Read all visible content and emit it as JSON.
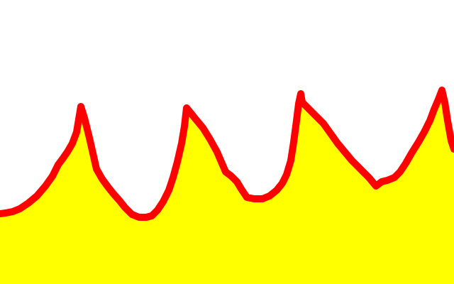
{
  "colors": {
    "background": "#ffffff",
    "fill": "#ffff00",
    "stroke": "#ff0000"
  }
}
